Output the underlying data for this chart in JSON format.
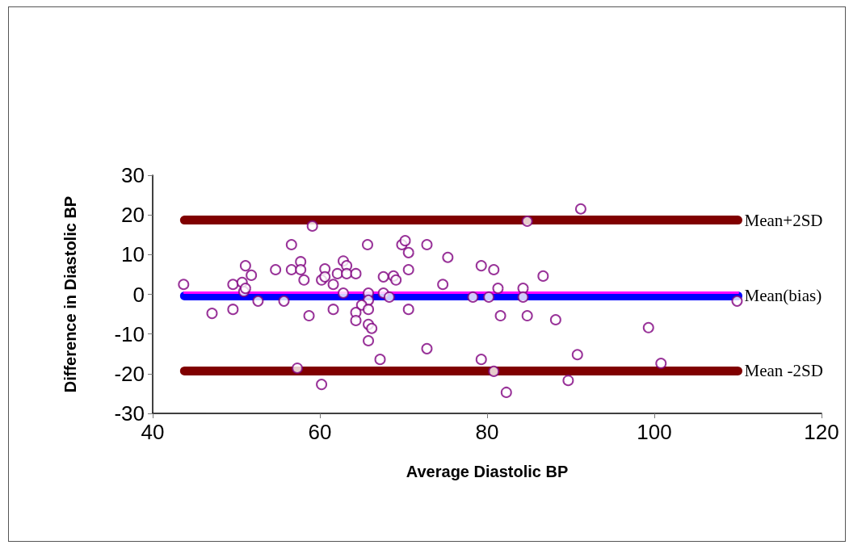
{
  "chart_data": {
    "type": "scatter",
    "xlabel": "Average Diastolic BP",
    "ylabel": "Difference in Diastolic BP",
    "xlim": [
      40,
      120
    ],
    "xticks": [
      40,
      60,
      80,
      100,
      120
    ],
    "ylim": [
      -30,
      30
    ],
    "yticks": [
      -30,
      -20,
      -10,
      0,
      10,
      20,
      30
    ],
    "grid": false,
    "legend": false,
    "series": [
      {
        "type": "line",
        "marker": "none",
        "name": "Mean+2SD",
        "color": "#800000",
        "x": [
          43.8,
          110
        ],
        "values": [
          18.7,
          18.7
        ]
      },
      {
        "type": "line",
        "marker": "none",
        "name": "Mean(bias)",
        "color": "#0000ff",
        "x": [
          43.8,
          110
        ],
        "values": [
          -0.4,
          -0.4
        ]
      },
      {
        "type": "line",
        "marker": "none",
        "color": "#ff00ff",
        "x": [
          43.8,
          110
        ],
        "values": [
          0.4,
          0.4
        ]
      },
      {
        "type": "line",
        "marker": "none",
        "name": "Mean -2SD",
        "color": "#800000",
        "x": [
          43.8,
          110
        ],
        "values": [
          -19.3,
          -19.3
        ]
      },
      {
        "marker": "circle",
        "color": "#800080",
        "x": [
          43.7,
          47.1,
          49.6,
          49.6,
          50.7,
          50.9,
          51.1,
          51.1,
          51.8,
          52.6,
          54.7,
          55.7,
          56.6,
          56.6,
          57.7,
          57.7,
          58.1,
          58.7,
          59.1,
          57.3,
          60.2,
          60.2,
          60.6,
          60.6,
          61.6,
          61.6,
          62.1,
          62.8,
          63.2,
          63.2,
          62.8,
          64.3,
          65.7,
          65.8,
          65.8,
          65.0,
          65.8,
          64.3,
          64.3,
          65.8,
          66.2,
          65.8,
          67.2,
          67.6,
          68.8,
          69.1,
          67.6,
          68.3,
          69.8,
          70.2,
          70.6,
          70.6,
          70.6,
          72.8,
          72.8,
          75.3,
          74.7,
          78.3,
          79.3,
          79.3,
          80.2,
          80.8,
          80.8,
          81.3,
          81.6,
          82.3,
          84.3,
          84.3,
          84.8,
          84.8,
          86.7,
          91.2,
          88.2,
          90.8,
          89.7,
          99.3,
          100.8,
          109.9
        ],
        "values": [
          2.5,
          -4.8,
          -3.8,
          2.5,
          3.0,
          0.7,
          1.5,
          7.2,
          4.8,
          -1.7,
          6.2,
          -1.7,
          12.5,
          6.2,
          8.2,
          6.2,
          3.6,
          -5.4,
          17.2,
          -18.6,
          -22.7,
          3.6,
          6.4,
          4.4,
          2.5,
          -3.8,
          5.2,
          8.4,
          7.2,
          5.2,
          0.3,
          5.2,
          12.5,
          0.3,
          -1.5,
          -2.7,
          -3.8,
          -4.6,
          -6.6,
          -7.6,
          -8.6,
          -11.7,
          -16.4,
          4.4,
          4.6,
          3.6,
          0.3,
          -0.7,
          12.5,
          13.5,
          10.5,
          6.2,
          -3.8,
          12.5,
          -13.7,
          9.3,
          2.5,
          -0.7,
          7.2,
          -16.4,
          -0.7,
          6.2,
          -19.4,
          1.5,
          -5.4,
          -24.7,
          1.5,
          -0.7,
          18.4,
          -5.4,
          4.6,
          21.5,
          -6.4,
          -15.2,
          -21.7,
          -8.4,
          -17.4,
          -1.7
        ]
      }
    ]
  }
}
